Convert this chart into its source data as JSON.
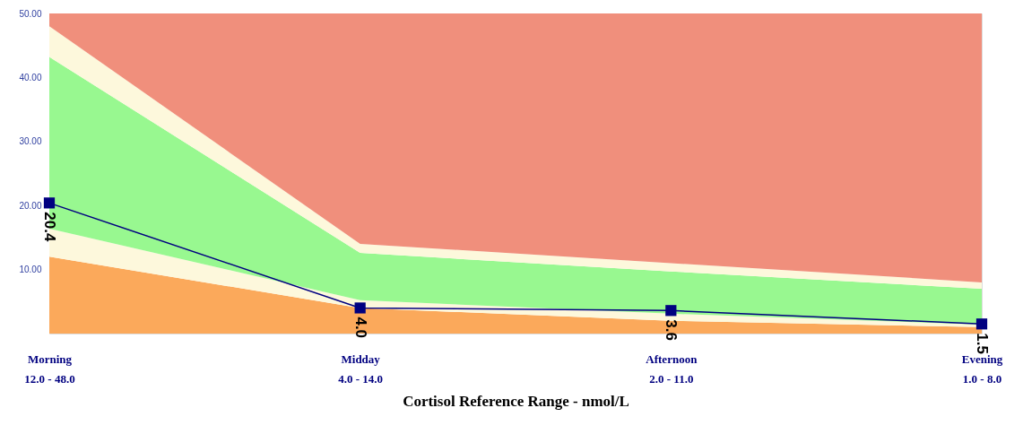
{
  "chart_data": {
    "type": "area",
    "stacked": true,
    "xlabel": "Cortisol Reference Range - nmol/L",
    "categories": [
      "Morning\n12.0 - 48.0",
      "Midday\n4.0 - 14.0",
      "Afternoon\n2.0 - 11.0",
      "Evening\n1.0 - 8.0"
    ],
    "series": [
      {
        "color": "#fba95b",
        "values": [
          12,
          4,
          2,
          1
        ]
      },
      {
        "color": "#fdf8dc",
        "values": [
          4.4,
          1.2,
          1.1,
          0.4
        ]
      },
      {
        "color": "#98f890",
        "values": [
          26.8,
          7.4,
          6.6,
          5.6
        ]
      },
      {
        "color": "#fdf8dc",
        "values": [
          4.8,
          1.4,
          1.3,
          1.0
        ]
      },
      {
        "color": "#f08f7c",
        "values": [
          2,
          36,
          39,
          42
        ]
      },
      {
        "type": "line",
        "color": "#000080",
        "marker": "square",
        "data_labels": true,
        "values": [
          20.4,
          4.0,
          3.6,
          1.5
        ],
        "value_labels": [
          "20.4",
          "4.0",
          "3.6",
          "1.5"
        ]
      }
    ],
    "ylim": [
      0,
      50
    ],
    "yticks": [
      {
        "value": 10,
        "label": "10.00"
      },
      {
        "value": 20,
        "label": "20.00"
      },
      {
        "value": 30,
        "label": "30.00"
      },
      {
        "value": 40,
        "label": "40.00"
      },
      {
        "value": 50,
        "label": "50.00"
      }
    ],
    "grid": false,
    "legend": false
  }
}
